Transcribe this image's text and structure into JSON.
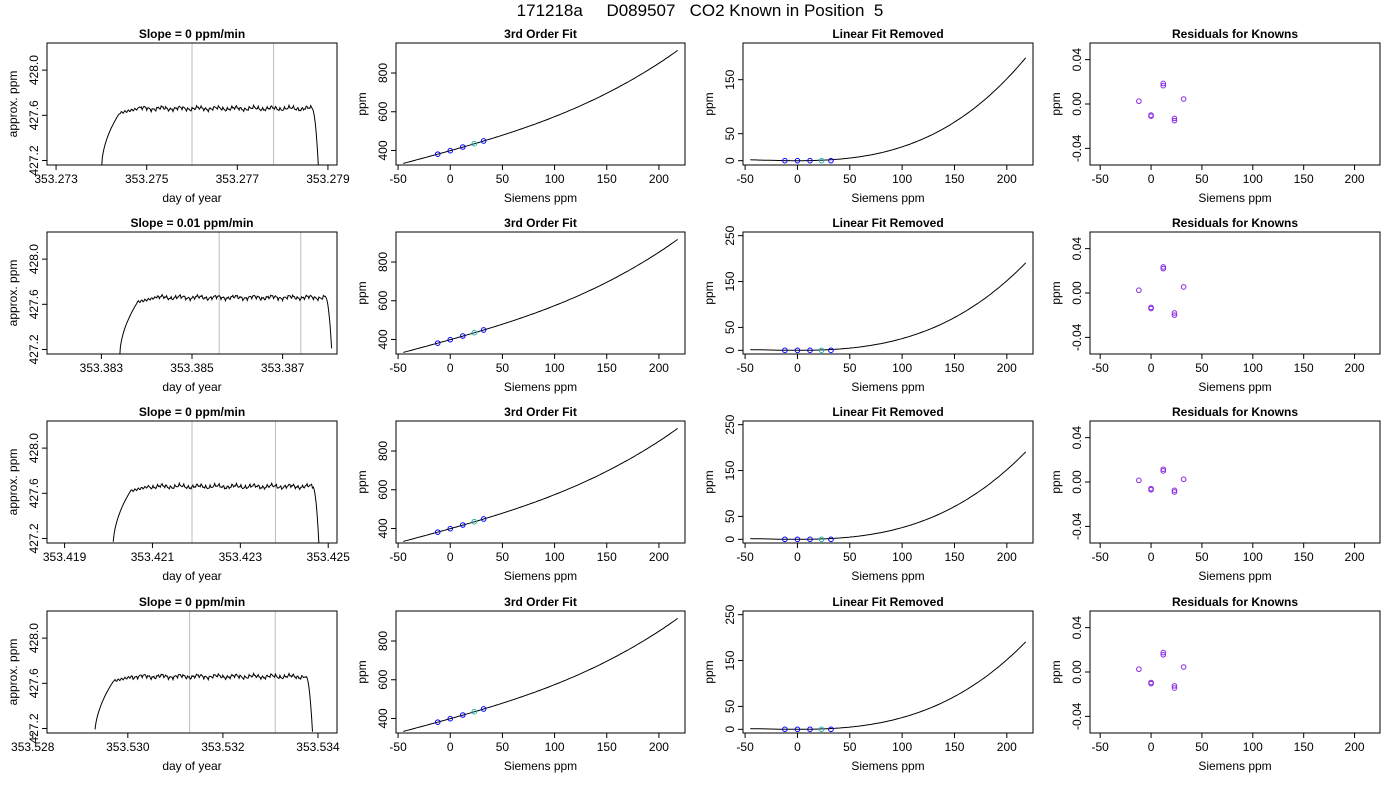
{
  "figure_title": "171218a     D089507   CO2 Known in Position  5",
  "chart_data": [
    {
      "type": "line",
      "row": 0,
      "col": 0,
      "title": "Slope =  0  ppm/min",
      "xlabel": "day of year",
      "ylabel": "approx. ppm",
      "xlim": [
        353.2728,
        353.2792
      ],
      "ylim": [
        427.16,
        428.24
      ],
      "xticks": [
        353.273,
        353.275,
        353.277,
        353.279
      ],
      "xtick_labels": [
        "353.273",
        "353.275",
        "353.277",
        "353.279"
      ],
      "yticks": [
        427.2,
        427.6,
        428.0
      ],
      "ytick_labels": [
        "427.2",
        "427.6",
        "428.0"
      ],
      "vlines": [
        353.276,
        353.2778
      ],
      "trace": {
        "rise_start": 353.274,
        "plateau_start": 353.2744,
        "fall": 353.27865,
        "plateau_level": 427.66
      }
    },
    {
      "type": "line",
      "row": 0,
      "col": 1,
      "title": "3rd Order Fit",
      "xlabel": "Siemens ppm",
      "ylabel": "ppm",
      "xlim": [
        -52,
        225
      ],
      "ylim": [
        325,
        955
      ],
      "xticks": [
        -50,
        0,
        50,
        100,
        150,
        200
      ],
      "xtick_labels": [
        "-50",
        "0",
        "50",
        "100",
        "150",
        "200"
      ],
      "yticks": [
        400,
        600,
        800
      ],
      "ytick_labels": [
        "400",
        "600",
        "800"
      ],
      "curve": {
        "x_from": -45,
        "x_to": 218,
        "coef": [
          399,
          1.5,
          0.00133,
          1.23e-05
        ]
      },
      "points": {
        "x": [
          -12,
          0,
          12,
          23,
          32
        ],
        "y": [
          381,
          399,
          418,
          435,
          449
        ]
      }
    },
    {
      "type": "line",
      "row": 0,
      "col": 2,
      "title": "Linear Fit Removed",
      "xlabel": "Siemens ppm",
      "ylabel": "ppm",
      "xlim": [
        -52,
        225
      ],
      "ylim": [
        -8,
        218
      ],
      "xticks": [
        -50,
        0,
        50,
        100,
        150,
        200
      ],
      "xtick_labels": [
        "-50",
        "0",
        "50",
        "100",
        "150",
        "200"
      ],
      "yticks": [
        0,
        50,
        150
      ],
      "ytick_labels": [
        "0",
        "50",
        "150"
      ],
      "curve": {
        "x_from": -45,
        "x_to": 218,
        "coef": [
          0,
          0,
          0.00133,
          1.23e-05
        ]
      },
      "points": {
        "x": [
          -12,
          0,
          12,
          23,
          32
        ],
        "y": [
          0,
          0,
          0,
          0,
          0
        ]
      }
    },
    {
      "type": "scatter",
      "row": 0,
      "col": 3,
      "title": "Residuals for Knowns",
      "xlabel": "Siemens ppm",
      "ylabel": "ppm",
      "xlim": [
        -60,
        225
      ],
      "ylim": [
        -0.055,
        0.055
      ],
      "xticks": [
        -50,
        0,
        50,
        100,
        150,
        200
      ],
      "xtick_labels": [
        "-50",
        "0",
        "50",
        "100",
        "150",
        "200"
      ],
      "yticks": [
        -0.04,
        0.0,
        0.04
      ],
      "ytick_labels": [
        "-0.04",
        "0.00",
        "0.04"
      ],
      "points": {
        "x": [
          -12,
          0,
          0,
          12,
          12,
          23,
          23,
          32
        ],
        "y": [
          0.0025,
          -0.01,
          -0.011,
          0.0185,
          0.0165,
          -0.013,
          -0.015,
          0.0045
        ]
      }
    },
    {
      "type": "line",
      "row": 1,
      "col": 0,
      "title": "Slope =  0.01  ppm/min",
      "xlabel": "day of year",
      "ylabel": "approx. ppm",
      "xlim": [
        353.3818,
        353.3882
      ],
      "ylim": [
        427.16,
        428.24
      ],
      "xticks": [
        353.383,
        353.385,
        353.387
      ],
      "xtick_labels": [
        "353.383",
        "353.385",
        "353.387"
      ],
      "yticks": [
        427.2,
        427.6,
        428.0
      ],
      "ytick_labels": [
        "427.2",
        "427.6",
        "428.0"
      ],
      "vlines": [
        353.3856,
        353.3874
      ],
      "trace": {
        "rise_start": 353.3834,
        "plateau_start": 353.3838,
        "fall": 353.38795,
        "plateau_level": 427.66
      }
    },
    {
      "type": "line",
      "row": 1,
      "col": 1,
      "title": "3rd Order Fit",
      "xlabel": "Siemens ppm",
      "ylabel": "ppm",
      "xlim": [
        -52,
        225
      ],
      "ylim": [
        325,
        955
      ],
      "xticks": [
        -50,
        0,
        50,
        100,
        150,
        200
      ],
      "xtick_labels": [
        "-50",
        "0",
        "50",
        "100",
        "150",
        "200"
      ],
      "yticks": [
        400,
        600,
        800
      ],
      "ytick_labels": [
        "400",
        "600",
        "800"
      ],
      "curve": {
        "x_from": -45,
        "x_to": 218,
        "coef": [
          399,
          1.5,
          0.00133,
          1.23e-05
        ]
      },
      "points": {
        "x": [
          -12,
          0,
          12,
          23,
          32
        ],
        "y": [
          381,
          399,
          418,
          435,
          449
        ]
      }
    },
    {
      "type": "line",
      "row": 1,
      "col": 2,
      "title": "Linear Fit Removed",
      "xlabel": "Siemens ppm",
      "ylabel": "ppm",
      "xlim": [
        -52,
        225
      ],
      "ylim": [
        -8,
        258
      ],
      "xticks": [
        -50,
        0,
        50,
        100,
        150,
        200
      ],
      "xtick_labels": [
        "-50",
        "0",
        "50",
        "100",
        "150",
        "200"
      ],
      "yticks": [
        0,
        50,
        150,
        250
      ],
      "ytick_labels": [
        "0",
        "50",
        "150",
        "250"
      ],
      "curve": {
        "x_from": -45,
        "x_to": 218,
        "coef": [
          0,
          0,
          0.00133,
          1.23e-05
        ]
      },
      "points": {
        "x": [
          -12,
          0,
          12,
          23,
          32
        ],
        "y": [
          0,
          0,
          0,
          0,
          0
        ]
      }
    },
    {
      "type": "scatter",
      "row": 1,
      "col": 3,
      "title": "Residuals for Knowns",
      "xlabel": "Siemens ppm",
      "ylabel": "ppm",
      "xlim": [
        -60,
        225
      ],
      "ylim": [
        -0.055,
        0.055
      ],
      "xticks": [
        -50,
        0,
        50,
        100,
        150,
        200
      ],
      "xtick_labels": [
        "-50",
        "0",
        "50",
        "100",
        "150",
        "200"
      ],
      "yticks": [
        -0.04,
        0.0,
        0.04
      ],
      "ytick_labels": [
        "-0.04",
        "0.00",
        "0.04"
      ],
      "points": {
        "x": [
          -12,
          0,
          0,
          12,
          12,
          23,
          23,
          32
        ],
        "y": [
          0.0025,
          -0.013,
          -0.014,
          0.0235,
          0.022,
          -0.018,
          -0.02,
          0.0055
        ]
      }
    },
    {
      "type": "line",
      "row": 2,
      "col": 0,
      "title": "Slope =  0  ppm/min",
      "xlabel": "day of year",
      "ylabel": "approx. ppm",
      "xlim": [
        353.4186,
        353.4252
      ],
      "ylim": [
        427.16,
        428.24
      ],
      "xticks": [
        353.419,
        353.421,
        353.423,
        353.425
      ],
      "xtick_labels": [
        "353.419",
        "353.421",
        "353.423",
        "353.425"
      ],
      "yticks": [
        427.2,
        427.6,
        428.0
      ],
      "ytick_labels": [
        "427.2",
        "427.6",
        "428.0"
      ],
      "vlines": [
        353.4219,
        353.4238
      ],
      "trace": {
        "rise_start": 353.4201,
        "plateau_start": 353.4205,
        "fall": 353.42465,
        "plateau_level": 427.66
      }
    },
    {
      "type": "line",
      "row": 2,
      "col": 1,
      "title": "3rd Order Fit",
      "xlabel": "Siemens ppm",
      "ylabel": "ppm",
      "xlim": [
        -52,
        225
      ],
      "ylim": [
        325,
        955
      ],
      "xticks": [
        -50,
        0,
        50,
        100,
        150,
        200
      ],
      "xtick_labels": [
        "-50",
        "0",
        "50",
        "100",
        "150",
        "200"
      ],
      "yticks": [
        400,
        600,
        800
      ],
      "ytick_labels": [
        "400",
        "600",
        "800"
      ],
      "curve": {
        "x_from": -45,
        "x_to": 218,
        "coef": [
          399,
          1.5,
          0.00133,
          1.23e-05
        ]
      },
      "points": {
        "x": [
          -12,
          0,
          12,
          23,
          32
        ],
        "y": [
          381,
          399,
          418,
          435,
          449
        ]
      }
    },
    {
      "type": "line",
      "row": 2,
      "col": 2,
      "title": "Linear Fit Removed",
      "xlabel": "Siemens ppm",
      "ylabel": "ppm",
      "xlim": [
        -52,
        225
      ],
      "ylim": [
        -8,
        258
      ],
      "xticks": [
        -50,
        0,
        50,
        100,
        150,
        200
      ],
      "xtick_labels": [
        "-50",
        "0",
        "50",
        "100",
        "150",
        "200"
      ],
      "yticks": [
        0,
        50,
        150,
        250
      ],
      "ytick_labels": [
        "0",
        "50",
        "150",
        "250"
      ],
      "curve": {
        "x_from": -45,
        "x_to": 218,
        "coef": [
          0,
          0,
          0.00133,
          1.23e-05
        ]
      },
      "points": {
        "x": [
          -12,
          0,
          12,
          23,
          32
        ],
        "y": [
          0,
          0,
          0,
          0,
          0
        ]
      }
    },
    {
      "type": "scatter",
      "row": 2,
      "col": 3,
      "title": "Residuals for Knowns",
      "xlabel": "Siemens ppm",
      "ylabel": "ppm",
      "xlim": [
        -60,
        225
      ],
      "ylim": [
        -0.055,
        0.055
      ],
      "xticks": [
        -50,
        0,
        50,
        100,
        150,
        200
      ],
      "xtick_labels": [
        "-50",
        "0",
        "50",
        "100",
        "150",
        "200"
      ],
      "yticks": [
        -0.04,
        0.0,
        0.04
      ],
      "ytick_labels": [
        "-0.04",
        "0.00",
        "0.04"
      ],
      "points": {
        "x": [
          -12,
          0,
          0,
          12,
          12,
          23,
          23,
          32
        ],
        "y": [
          0.0015,
          -0.006,
          -0.007,
          0.0115,
          0.01,
          -0.0075,
          -0.009,
          0.0025
        ]
      }
    },
    {
      "type": "line",
      "row": 3,
      "col": 0,
      "title": "Slope =  0  ppm/min",
      "xlabel": "day of year",
      "ylabel": "approx. ppm",
      "xlim": [
        353.5283,
        353.5344
      ],
      "ylim": [
        427.16,
        428.24
      ],
      "xticks": [
        353.528,
        353.53,
        353.532,
        353.534
      ],
      "xtick_labels": [
        "353.528",
        "353.530",
        "353.532",
        "353.534"
      ],
      "yticks": [
        427.2,
        427.6,
        428.0
      ],
      "ytick_labels": [
        "427.2",
        "427.6",
        "428.0"
      ],
      "vlines": [
        353.5313,
        353.5331
      ],
      "trace": {
        "rise_start": 353.5293,
        "plateau_start": 353.5297,
        "fall": 353.53375,
        "plateau_level": 427.66
      }
    },
    {
      "type": "line",
      "row": 3,
      "col": 1,
      "title": "3rd Order Fit",
      "xlabel": "Siemens ppm",
      "ylabel": "ppm",
      "xlim": [
        -52,
        225
      ],
      "ylim": [
        325,
        955
      ],
      "xticks": [
        -50,
        0,
        50,
        100,
        150,
        200
      ],
      "xtick_labels": [
        "-50",
        "0",
        "50",
        "100",
        "150",
        "200"
      ],
      "yticks": [
        400,
        600,
        800
      ],
      "ytick_labels": [
        "400",
        "600",
        "800"
      ],
      "curve": {
        "x_from": -45,
        "x_to": 218,
        "coef": [
          399,
          1.5,
          0.00133,
          1.23e-05
        ]
      },
      "points": {
        "x": [
          -12,
          0,
          12,
          23,
          32
        ],
        "y": [
          381,
          399,
          418,
          435,
          449
        ]
      }
    },
    {
      "type": "line",
      "row": 3,
      "col": 2,
      "title": "Linear Fit Removed",
      "xlabel": "Siemens ppm",
      "ylabel": "ppm",
      "xlim": [
        -52,
        225
      ],
      "ylim": [
        -8,
        258
      ],
      "xticks": [
        -50,
        0,
        50,
        100,
        150,
        200
      ],
      "xtick_labels": [
        "-50",
        "0",
        "50",
        "100",
        "150",
        "200"
      ],
      "yticks": [
        0,
        50,
        150,
        250
      ],
      "ytick_labels": [
        "0",
        "50",
        "150",
        "250"
      ],
      "curve": {
        "x_from": -45,
        "x_to": 218,
        "coef": [
          0,
          0,
          0.00133,
          1.23e-05
        ]
      },
      "points": {
        "x": [
          -12,
          0,
          12,
          23,
          32
        ],
        "y": [
          0,
          0,
          0,
          0,
          0
        ]
      }
    },
    {
      "type": "scatter",
      "row": 3,
      "col": 3,
      "title": "Residuals for Knowns",
      "xlabel": "Siemens ppm",
      "ylabel": "ppm",
      "xlim": [
        -60,
        225
      ],
      "ylim": [
        -0.055,
        0.055
      ],
      "xticks": [
        -50,
        0,
        50,
        100,
        150,
        200
      ],
      "xtick_labels": [
        "-50",
        "0",
        "50",
        "100",
        "150",
        "200"
      ],
      "yticks": [
        -0.04,
        0.0,
        0.04
      ],
      "ytick_labels": [
        "-0.04",
        "0.00",
        "0.04"
      ],
      "points": {
        "x": [
          -12,
          0,
          0,
          12,
          12,
          23,
          23,
          32
        ],
        "y": [
          0.0025,
          -0.0095,
          -0.0105,
          0.0175,
          0.0155,
          -0.0125,
          -0.0145,
          0.0045
        ]
      }
    }
  ],
  "colors": {
    "axis": "#000000",
    "vline": "#bebebe",
    "point_edge": "#0000ff",
    "point_mixed": "#8a2be2",
    "point_teal": "#20b2aa",
    "trace": "#000000",
    "trace_accent": "#ff0000"
  }
}
